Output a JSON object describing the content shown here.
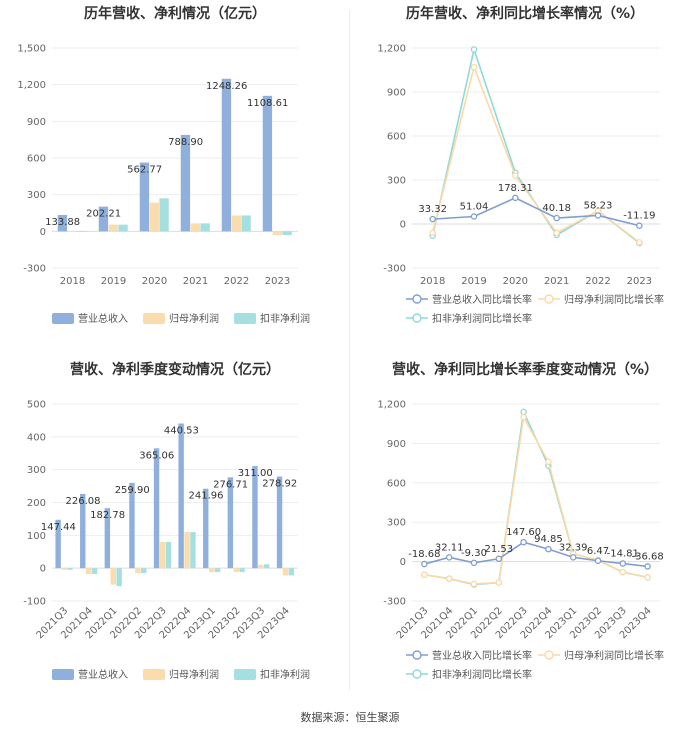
{
  "source": "数据来源：恒生聚源",
  "chart_data": [
    {
      "type": "bar",
      "title": "历年营收、净利情况（亿元）",
      "categories": [
        "2018",
        "2019",
        "2020",
        "2021",
        "2022",
        "2023"
      ],
      "ylim": [
        -300,
        1500
      ],
      "yticks": [
        "-300",
        "0",
        "300",
        "600",
        "900",
        "1,200",
        "1,500"
      ],
      "yticks_values": [
        -300,
        0,
        300,
        600,
        900,
        1200,
        1500
      ],
      "series": [
        {
          "name": "营业总收入",
          "color": "#8fb0dd",
          "values": [
            133.88,
            202.21,
            562.77,
            788.9,
            1248.26,
            1108.61
          ],
          "labels": [
            "133.88",
            "202.21",
            "562.77",
            "788.90",
            "1248.26",
            "1108.61"
          ]
        },
        {
          "name": "归母净利润",
          "color": "#fbdcac",
          "values": [
            -2,
            55,
            235,
            65,
            130,
            -30
          ]
        },
        {
          "name": "扣非净利润",
          "color": "#a6dfe0",
          "values": [
            -3,
            55,
            270,
            65,
            130,
            -30
          ]
        }
      ]
    },
    {
      "type": "line",
      "title": "历年营收、净利同比增长率情况（%）",
      "categories": [
        "2018",
        "2019",
        "2020",
        "2021",
        "2022",
        "2023"
      ],
      "ylim": [
        -300,
        1200
      ],
      "yticks": [
        "-300",
        "0",
        "300",
        "600",
        "900",
        "1,200"
      ],
      "yticks_values": [
        -300,
        0,
        300,
        600,
        900,
        1200
      ],
      "series": [
        {
          "name": "营业总收入同比增长率",
          "color": "#7f9fd0",
          "values": [
            33.32,
            51.04,
            178.31,
            40.18,
            58.23,
            -11.19
          ],
          "labels": [
            "33.32",
            "51.04",
            "178.31",
            "40.18",
            "58.23",
            "-11.19"
          ]
        },
        {
          "name": "归母净利润同比增长率",
          "color": "#fbd9a5",
          "values": [
            -60,
            1070,
            330,
            -60,
            90,
            -125
          ]
        },
        {
          "name": "扣非净利润同比增长率",
          "color": "#8ed9da",
          "values": [
            -80,
            1190,
            350,
            -75,
            90,
            -130
          ]
        }
      ]
    },
    {
      "type": "bar",
      "title": "营收、净利季度变动情况（亿元）",
      "categories": [
        "2021Q3",
        "2021Q4",
        "2022Q1",
        "2022Q2",
        "2022Q3",
        "2022Q4",
        "2023Q1",
        "2023Q2",
        "2023Q3",
        "2023Q4"
      ],
      "ylim": [
        -100,
        500
      ],
      "yticks": [
        "-100",
        "0",
        "100",
        "200",
        "300",
        "400",
        "500"
      ],
      "yticks_values": [
        -100,
        0,
        100,
        200,
        300,
        400,
        500
      ],
      "series": [
        {
          "name": "营业总收入",
          "color": "#8fb0dd",
          "values": [
            147.44,
            226.08,
            182.78,
            259.9,
            365.06,
            440.53,
            241.96,
            276.71,
            311.0,
            278.92
          ],
          "labels": [
            "147.44",
            "226.08",
            "182.78",
            "259.90",
            "365.06",
            "440.53",
            "241.96",
            "276.71",
            "311.00",
            "278.92"
          ]
        },
        {
          "name": "归母净利润",
          "color": "#fbdcac",
          "values": [
            -5,
            -18,
            -50,
            -15,
            80,
            110,
            -12,
            -12,
            10,
            -22
          ]
        },
        {
          "name": "扣非净利润",
          "color": "#a6dfe0",
          "values": [
            -5,
            -18,
            -55,
            -15,
            80,
            110,
            -12,
            -12,
            12,
            -22
          ]
        }
      ]
    },
    {
      "type": "line",
      "title": "营收、净利同比增长率季度变动情况（%）",
      "categories": [
        "2021Q3",
        "2021Q4",
        "2022Q1",
        "2022Q2",
        "2022Q3",
        "2022Q4",
        "2023Q1",
        "2023Q2",
        "2023Q3",
        "2023Q4"
      ],
      "ylim": [
        -300,
        1200
      ],
      "yticks": [
        "-300",
        "0",
        "300",
        "600",
        "900",
        "1,200"
      ],
      "yticks_values": [
        -300,
        0,
        300,
        600,
        900,
        1200
      ],
      "series": [
        {
          "name": "营业总收入同比增长率",
          "color": "#7f9fd0",
          "values": [
            -18.68,
            32.11,
            -9.3,
            21.53,
            147.6,
            94.85,
            32.39,
            6.47,
            -14.81,
            -36.68
          ],
          "labels": [
            "-18.68",
            "32.11",
            "-9.30",
            "21.53",
            "147.60",
            "94.85",
            "32.39",
            "6.47",
            "-14.81",
            "-36.68"
          ]
        },
        {
          "name": "归母净利润同比增长率",
          "color": "#fbd9a5",
          "values": [
            -100,
            -130,
            -170,
            -160,
            1100,
            760,
            60,
            10,
            -80,
            -120
          ]
        },
        {
          "name": "扣非净利润同比增长率",
          "color": "#8ed9da",
          "values": [
            -100,
            -130,
            -175,
            -160,
            1140,
            730,
            60,
            10,
            -80,
            -120
          ]
        }
      ]
    }
  ]
}
